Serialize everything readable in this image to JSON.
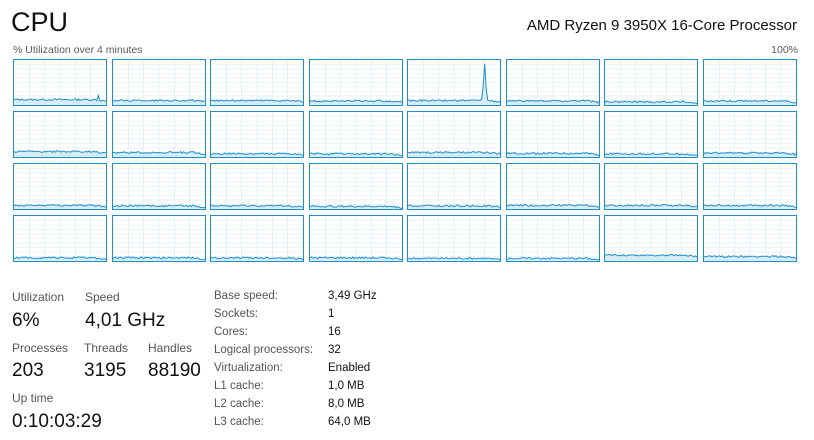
{
  "header": {
    "title": "CPU",
    "processor_name": "AMD Ryzen 9 3950X 16-Core Processor",
    "graph_caption": "% Utilization over 4 minutes",
    "graph_max": "100%"
  },
  "graph": {
    "logical_processors": 32,
    "line_color": "#1f8fc8",
    "fill_color": "#d9ecf6",
    "grid_color": "#d6e9f4",
    "baseline_levels": [
      12,
      10,
      10,
      9,
      10,
      9,
      7,
      9,
      12,
      10,
      7,
      7,
      10,
      8,
      7,
      9,
      8,
      7,
      7,
      6,
      7,
      8,
      8,
      8,
      7,
      7,
      7,
      7,
      6,
      6,
      13,
      10
    ],
    "peak_core_index": 4,
    "peak_level": 92
  },
  "stats": {
    "utilization": {
      "label": "Utilization",
      "value": "6%"
    },
    "speed": {
      "label": "Speed",
      "value": "4,01 GHz"
    },
    "processes": {
      "label": "Processes",
      "value": "203"
    },
    "threads": {
      "label": "Threads",
      "value": "3195"
    },
    "handles": {
      "label": "Handles",
      "value": "88190"
    },
    "uptime": {
      "label": "Up time",
      "value": "0:10:03:29"
    }
  },
  "specs": [
    {
      "label": "Base speed:",
      "value": "3,49 GHz"
    },
    {
      "label": "Sockets:",
      "value": "1"
    },
    {
      "label": "Cores:",
      "value": "16"
    },
    {
      "label": "Logical processors:",
      "value": "32"
    },
    {
      "label": "Virtualization:",
      "value": "Enabled"
    },
    {
      "label": "L1 cache:",
      "value": "1,0 MB"
    },
    {
      "label": "L2 cache:",
      "value": "8,0 MB"
    },
    {
      "label": "L3 cache:",
      "value": "64,0 MB"
    }
  ]
}
